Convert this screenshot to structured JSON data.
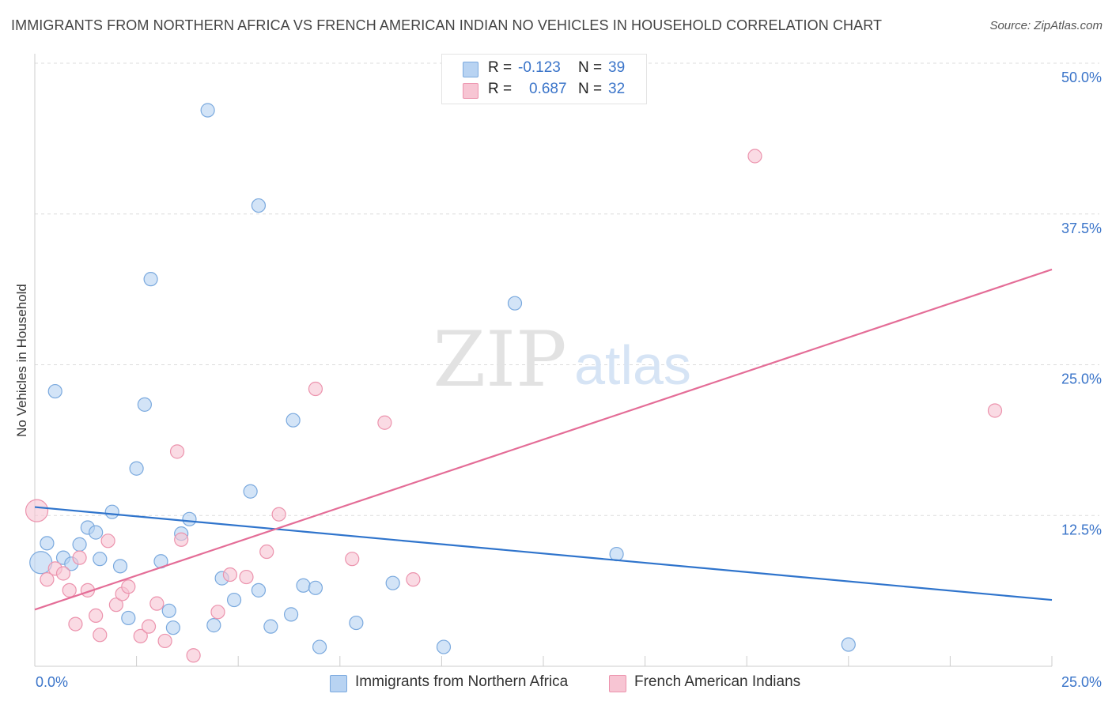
{
  "header": {
    "title": "IMMIGRANTS FROM NORTHERN AFRICA VS FRENCH AMERICAN INDIAN NO VEHICLES IN HOUSEHOLD CORRELATION CHART",
    "source": "Source: ZipAtlas.com"
  },
  "watermark": {
    "zip": "ZIP",
    "atlas": "atlas"
  },
  "legend": {
    "series1": {
      "r_label": "R =",
      "r_value": "-0.123",
      "n_label": "N =",
      "n_value": "39"
    },
    "series2": {
      "r_label": "R =",
      "r_value": "0.687",
      "n_label": "N =",
      "n_value": "32"
    }
  },
  "colors": {
    "blue_fill": "#b8d3f2",
    "blue_stroke": "#7aa9de",
    "blue_line": "#2f74cc",
    "pink_fill": "#f7c5d3",
    "pink_stroke": "#ec93ad",
    "pink_line": "#e46d97",
    "grid": "#dcdcdc",
    "tick_label": "#3a74c9"
  },
  "chart_data": {
    "type": "scatter",
    "title": "IMMIGRANTS FROM NORTHERN AFRICA VS FRENCH AMERICAN INDIAN NO VEHICLES IN HOUSEHOLD CORRELATION CHART",
    "xlabel": "",
    "ylabel": "No Vehicles in Household",
    "xlim": [
      0,
      25
    ],
    "ylim": [
      0,
      50
    ],
    "x_tick_labels": [
      "0.0%",
      "25.0%"
    ],
    "y_ticks": [
      12.5,
      25.0,
      37.5,
      50.0
    ],
    "y_tick_labels": [
      "12.5%",
      "25.0%",
      "37.5%",
      "50.0%"
    ],
    "grid": true,
    "series": [
      {
        "name": "Immigrants from Northern Africa",
        "color": "blue",
        "trend": [
          [
            0,
            13.2
          ],
          [
            25,
            5.5
          ]
        ],
        "points": [
          {
            "x": 0.15,
            "y": 8.6,
            "big": true
          },
          {
            "x": 0.3,
            "y": 10.2
          },
          {
            "x": 0.5,
            "y": 22.8
          },
          {
            "x": 0.7,
            "y": 9.0
          },
          {
            "x": 0.9,
            "y": 8.5
          },
          {
            "x": 1.1,
            "y": 10.1
          },
          {
            "x": 1.3,
            "y": 11.5
          },
          {
            "x": 1.5,
            "y": 11.1
          },
          {
            "x": 1.6,
            "y": 8.9
          },
          {
            "x": 1.9,
            "y": 12.8
          },
          {
            "x": 2.1,
            "y": 8.3
          },
          {
            "x": 2.3,
            "y": 4.0
          },
          {
            "x": 2.5,
            "y": 16.4
          },
          {
            "x": 2.7,
            "y": 21.7
          },
          {
            "x": 2.85,
            "y": 32.1
          },
          {
            "x": 3.1,
            "y": 8.7
          },
          {
            "x": 3.3,
            "y": 4.6
          },
          {
            "x": 3.4,
            "y": 3.2
          },
          {
            "x": 3.6,
            "y": 11.0
          },
          {
            "x": 3.8,
            "y": 12.2
          },
          {
            "x": 4.25,
            "y": 46.1
          },
          {
            "x": 4.4,
            "y": 3.4
          },
          {
            "x": 4.6,
            "y": 7.3
          },
          {
            "x": 4.9,
            "y": 5.5
          },
          {
            "x": 5.3,
            "y": 14.5
          },
          {
            "x": 5.5,
            "y": 6.3
          },
          {
            "x": 5.5,
            "y": 38.2
          },
          {
            "x": 5.8,
            "y": 3.3
          },
          {
            "x": 6.3,
            "y": 4.3
          },
          {
            "x": 6.35,
            "y": 20.4
          },
          {
            "x": 6.6,
            "y": 6.7
          },
          {
            "x": 6.9,
            "y": 6.5
          },
          {
            "x": 7.0,
            "y": 1.6
          },
          {
            "x": 7.9,
            "y": 3.6
          },
          {
            "x": 8.8,
            "y": 6.9
          },
          {
            "x": 10.05,
            "y": 1.6
          },
          {
            "x": 11.8,
            "y": 30.1
          },
          {
            "x": 14.3,
            "y": 9.3
          },
          {
            "x": 20.0,
            "y": 1.8
          }
        ]
      },
      {
        "name": "French American Indians",
        "color": "pink",
        "trend": [
          [
            0,
            4.7
          ],
          [
            25,
            32.9
          ]
        ],
        "points": [
          {
            "x": 0.05,
            "y": 12.9,
            "big": true
          },
          {
            "x": 0.3,
            "y": 7.2
          },
          {
            "x": 0.5,
            "y": 8.1
          },
          {
            "x": 0.7,
            "y": 7.7
          },
          {
            "x": 0.85,
            "y": 6.3
          },
          {
            "x": 1.0,
            "y": 3.5
          },
          {
            "x": 1.1,
            "y": 9.0
          },
          {
            "x": 1.3,
            "y": 6.3
          },
          {
            "x": 1.5,
            "y": 4.2
          },
          {
            "x": 1.6,
            "y": 2.6
          },
          {
            "x": 1.8,
            "y": 10.4
          },
          {
            "x": 2.0,
            "y": 5.1
          },
          {
            "x": 2.15,
            "y": 6.0
          },
          {
            "x": 2.3,
            "y": 6.6
          },
          {
            "x": 2.6,
            "y": 2.5
          },
          {
            "x": 2.8,
            "y": 3.3
          },
          {
            "x": 3.0,
            "y": 5.2
          },
          {
            "x": 3.2,
            "y": 2.1
          },
          {
            "x": 3.5,
            "y": 17.8
          },
          {
            "x": 3.6,
            "y": 10.5
          },
          {
            "x": 3.9,
            "y": 0.9
          },
          {
            "x": 4.5,
            "y": 4.5
          },
          {
            "x": 4.8,
            "y": 7.6
          },
          {
            "x": 5.2,
            "y": 7.4
          },
          {
            "x": 5.7,
            "y": 9.5
          },
          {
            "x": 6.0,
            "y": 12.6
          },
          {
            "x": 6.9,
            "y": 23.0
          },
          {
            "x": 7.8,
            "y": 8.9
          },
          {
            "x": 8.6,
            "y": 20.2
          },
          {
            "x": 9.3,
            "y": 7.2
          },
          {
            "x": 17.7,
            "y": 42.3
          },
          {
            "x": 23.6,
            "y": 21.2
          }
        ]
      }
    ]
  },
  "bottom_legend": {
    "series1_label": "Immigrants from Northern Africa",
    "series2_label": "French American Indians"
  }
}
